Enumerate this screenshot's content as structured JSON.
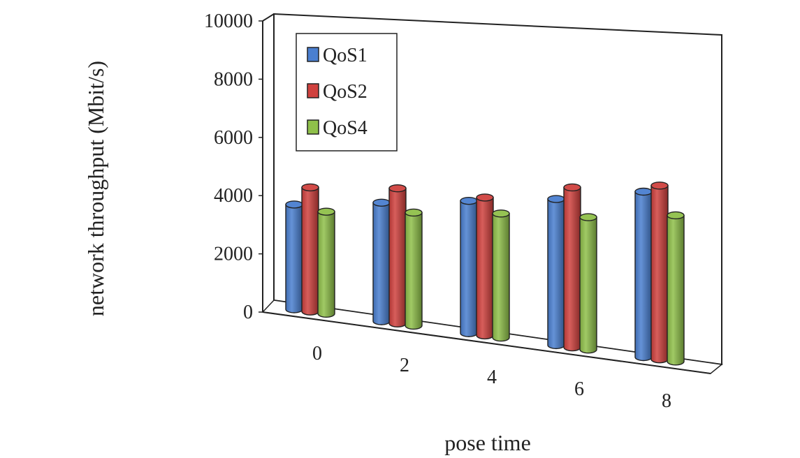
{
  "chart_data": {
    "type": "bar",
    "style": "3d-cylinder",
    "categories": [
      "0",
      "2",
      "4",
      "6",
      "8"
    ],
    "series": [
      {
        "name": "QoS1",
        "values": [
          3800,
          4300,
          4800,
          5300,
          6000
        ],
        "color": "#4a7fd0"
      },
      {
        "name": "QoS2",
        "values": [
          4500,
          4900,
          5000,
          5800,
          6300
        ],
        "color": "#d0413e"
      },
      {
        "name": "QoS4",
        "values": [
          3700,
          4100,
          4500,
          4800,
          5300
        ],
        "color": "#8fc04a"
      }
    ],
    "title": "",
    "xlabel": "pose time",
    "ylabel": "network throughput (Mbit/s)",
    "ylim": [
      0,
      10000
    ],
    "yticks": [
      "0",
      "2000",
      "4000",
      "6000",
      "8000",
      "10000"
    ],
    "grid": false,
    "legend_position": "top-left"
  }
}
